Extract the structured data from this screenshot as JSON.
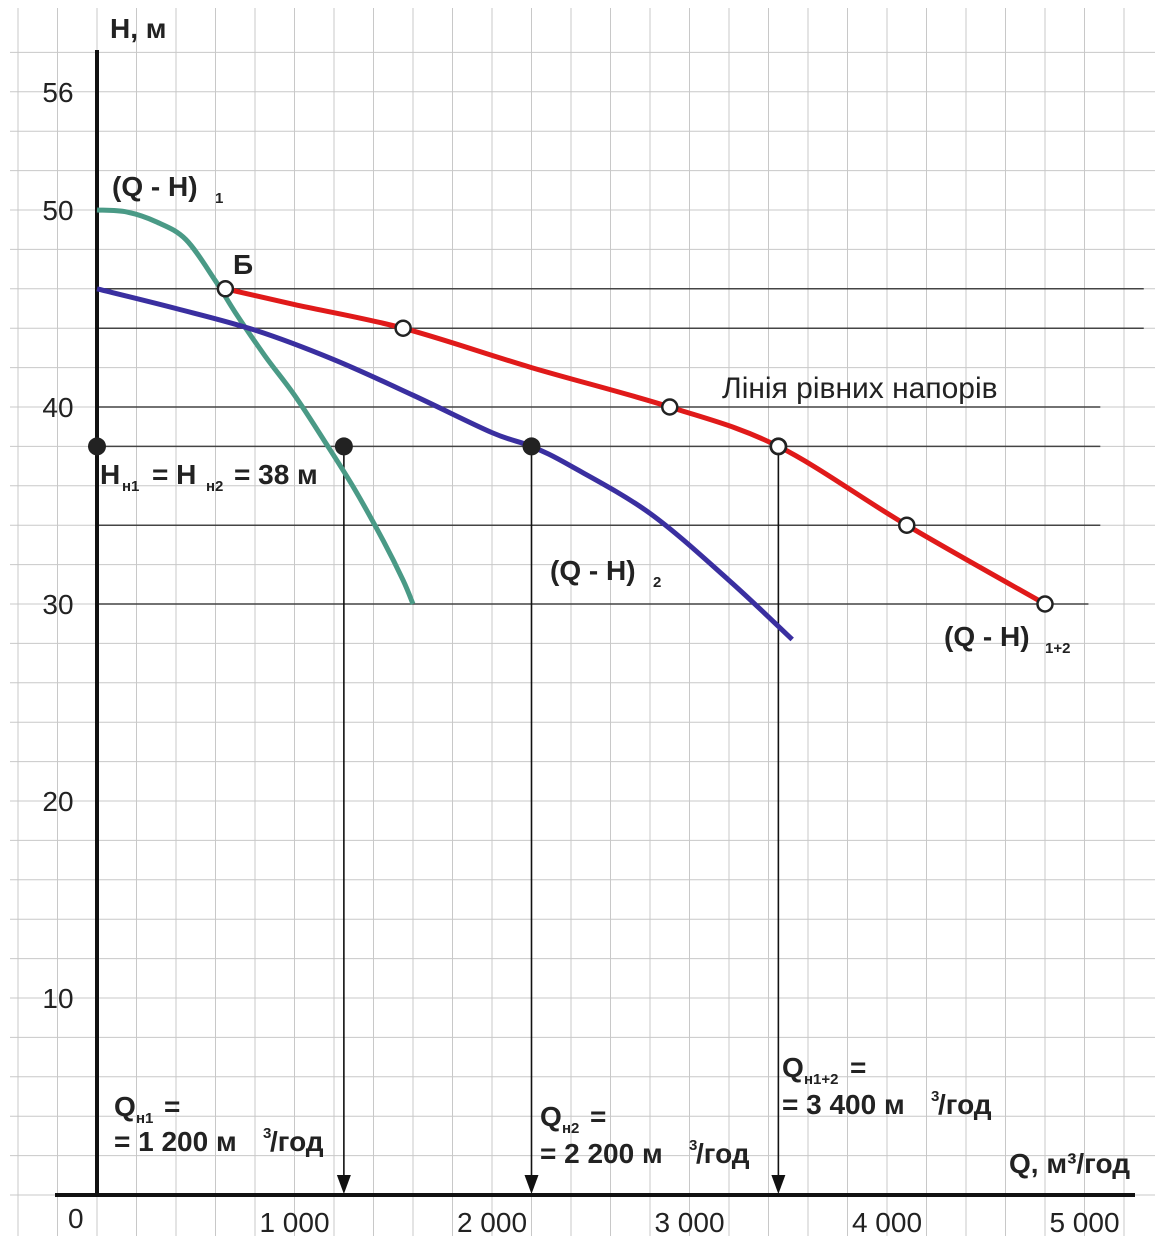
{
  "chart_data": {
    "type": "line",
    "xlabel": "Q, м³/год",
    "ylabel": "H, м",
    "xlim": [
      0,
      5150
    ],
    "ylim": [
      0,
      57
    ],
    "origin_label": "0",
    "x_ticks": [
      1000,
      2000,
      3000,
      4000,
      5000
    ],
    "x_tick_labels": [
      "1 000",
      "2 000",
      "3 000",
      "4 000",
      "5 000"
    ],
    "y_ticks": [
      10,
      20,
      30,
      40,
      50,
      56
    ],
    "y_tick_labels": [
      "10",
      "20",
      "30",
      "40",
      "50",
      "56"
    ],
    "grid": true,
    "colors": {
      "grid": "#c8c8c8",
      "axis": "#111111",
      "series1": "#4a9a86",
      "series2": "#3a2fa0",
      "series12": "#e01a1a",
      "ref": "#444444"
    },
    "series": [
      {
        "name": "(Q - H)₁",
        "x": [
          0,
          150,
          300,
          450,
          600,
          700,
          850,
          1000,
          1150,
          1300,
          1450,
          1550,
          1600
        ],
        "y": [
          50,
          49.9,
          49.4,
          48.5,
          46.4,
          44.8,
          42.6,
          40.6,
          38.3,
          35.9,
          33.2,
          31.2,
          30
        ]
      },
      {
        "name": "(Q - H)₂",
        "x": [
          0,
          400,
          800,
          1200,
          1600,
          2000,
          2200,
          2400,
          2800,
          3200,
          3520
        ],
        "y": [
          46,
          45,
          43.9,
          42.4,
          40.6,
          38.7,
          38,
          37,
          34.6,
          31.2,
          28.2
        ]
      },
      {
        "name": "(Q - H)₁₊₂",
        "x": [
          650,
          1000,
          1550,
          2200,
          2900,
          3450,
          4100,
          4800
        ],
        "y": [
          46,
          45.2,
          44,
          42,
          40,
          38,
          34,
          30
        ]
      }
    ],
    "hollow_points": [
      [
        650,
        46
      ],
      [
        1550,
        44
      ],
      [
        2900,
        40
      ],
      [
        3450,
        38
      ],
      [
        4100,
        34
      ],
      [
        4800,
        30
      ]
    ],
    "filled_points": [
      [
        0,
        38
      ],
      [
        1250,
        38
      ],
      [
        2200,
        38
      ],
      [
        3450,
        38
      ]
    ],
    "equal_head_lines": [
      46,
      44,
      40,
      38,
      34,
      30
    ],
    "drop_lines_x": [
      1250,
      2200,
      3450
    ],
    "annotations": {
      "label_q1": "(Q - H)",
      "label_q1_sub": "1",
      "label_q2": "(Q - H)",
      "label_q2_sub": "2",
      "label_q12": "(Q - H)",
      "label_q12_sub": "1+2",
      "point_b": "Б",
      "equal_head_label": "Лінія рівних напорів",
      "head_h": "H",
      "head_sub1": "н1",
      "head_mid": "= H",
      "head_sub2": "н2",
      "head_value": "= 38 м",
      "qn1_q": "Q",
      "qn1_sub": "н1",
      "qn1_eq": "=",
      "qn1_value": "= 1 200 м",
      "qn1_sup": "3",
      "qn1_unit": "/год",
      "qn2_q": "Q",
      "qn2_sub": "н2",
      "qn2_eq": "=",
      "qn2_value": "= 2 200 м",
      "qn2_sup": "3",
      "qn2_unit": "/год",
      "qn12_q": "Q",
      "qn12_sub": "н1+2",
      "qn12_eq": "=",
      "qn12_value": "= 3 400 м",
      "qn12_sup": "3",
      "qn12_unit": "/год"
    }
  }
}
